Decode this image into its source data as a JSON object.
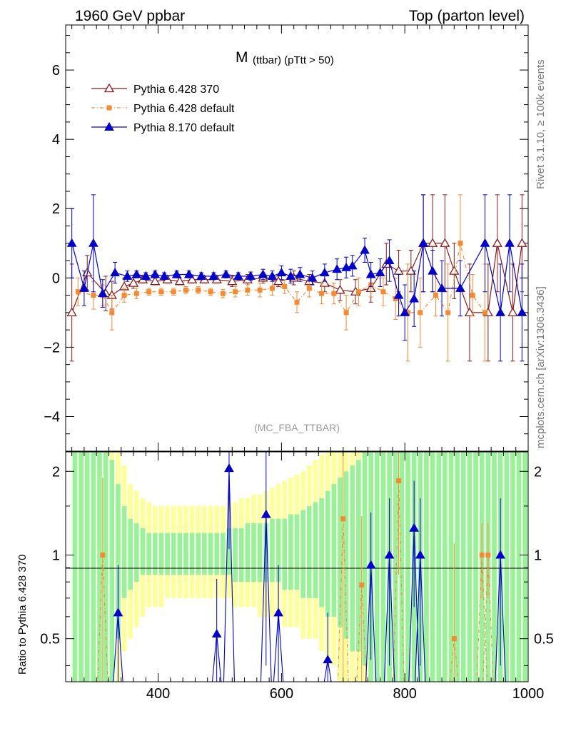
{
  "header": {
    "left": "1960 GeV ppbar",
    "right": "Top (parton level)"
  },
  "side_labels": {
    "rivet": "Rivet 3.1.10, ≥ 100k events",
    "mcplots": "mcplots.cern.ch [arXiv:1306.3436]"
  },
  "colors": {
    "pythia6_370": "#8b1a1a",
    "pythia6_default": "#f58a32",
    "pythia8_default": "#0000cc",
    "band_green": "#99f299",
    "band_yellow": "#ffff99"
  },
  "chart_data": [
    {
      "type": "line",
      "panel": "main",
      "title": "M (ttbar) (pTtt > 50)",
      "title_main": "M",
      "title_sub": "(ttbar) (pTtt > 50)",
      "analysis_tag": "(MC_FBA_TTBAR)",
      "xlim": [
        250,
        1000
      ],
      "ylim": [
        -5,
        7.3
      ],
      "yticks": [
        -4,
        -2,
        0,
        2,
        4,
        6
      ],
      "ytick_labels": [
        "−4",
        "−2",
        "0",
        "2",
        "4",
        "6"
      ],
      "legend_position": "top-left",
      "series": [
        {
          "name": "Pythia 6.428 370",
          "marker": "open-triangle",
          "x": [
            260,
            285,
            315,
            325,
            345,
            360,
            375,
            395,
            415,
            435,
            455,
            475,
            495,
            520,
            545,
            570,
            595,
            620,
            645,
            670,
            695,
            720,
            745,
            770,
            790,
            810,
            830,
            845,
            865,
            880,
            905,
            935,
            950,
            975,
            990
          ],
          "y": [
            -1.0,
            0.15,
            -0.45,
            -0.5,
            -0.25,
            -0.15,
            -0.05,
            -0.1,
            -0.05,
            -0.1,
            -0.05,
            -0.05,
            -0.05,
            -0.1,
            -0.05,
            0.0,
            -0.1,
            0.0,
            -0.1,
            -0.15,
            -0.35,
            -0.4,
            -0.3,
            0.4,
            0.2,
            0.2,
            1.0,
            1.0,
            1.0,
            0.2,
            -1.0,
            -1.0,
            1.0,
            -1.0,
            1.0
          ],
          "err": [
            1.4,
            0.5,
            0.5,
            0.4,
            0.25,
            0.15,
            0.1,
            0.1,
            0.1,
            0.1,
            0.1,
            0.1,
            0.1,
            0.15,
            0.15,
            0.15,
            0.15,
            0.2,
            0.2,
            0.25,
            0.3,
            0.35,
            0.4,
            0.6,
            0.6,
            0.6,
            1.4,
            1.4,
            1.4,
            0.8,
            1.4,
            1.4,
            1.4,
            1.4,
            1.4
          ]
        },
        {
          "name": "Pythia 6.428 default",
          "marker": "filled-square",
          "x": [
            270,
            295,
            310,
            325,
            345,
            365,
            385,
            405,
            425,
            445,
            465,
            485,
            505,
            525,
            545,
            565,
            585,
            605,
            625,
            645,
            665,
            685,
            705,
            725,
            745,
            765,
            785,
            805,
            825,
            850,
            870,
            890,
            910,
            930
          ],
          "y": [
            -0.4,
            -0.5,
            -0.5,
            -1.0,
            -0.5,
            -0.45,
            -0.4,
            -0.4,
            -0.4,
            -0.35,
            -0.35,
            -0.4,
            -0.45,
            -0.4,
            -0.35,
            -0.35,
            -0.3,
            -0.25,
            -0.7,
            -0.3,
            -0.45,
            -0.45,
            -1.0,
            -0.4,
            -0.2,
            -0.4,
            -0.6,
            -1.0,
            -1.0,
            -0.5,
            -1.0,
            1.0,
            -0.5,
            -1.0
          ],
          "err": [
            0.4,
            0.4,
            0.3,
            0.5,
            0.2,
            0.15,
            0.1,
            0.1,
            0.1,
            0.1,
            0.1,
            0.1,
            0.12,
            0.15,
            0.15,
            0.2,
            0.2,
            0.2,
            0.3,
            0.25,
            0.3,
            0.3,
            0.5,
            0.4,
            0.35,
            0.4,
            0.6,
            1.4,
            1.0,
            0.6,
            1.4,
            1.4,
            0.6,
            1.4
          ]
        },
        {
          "name": "Pythia 8.170 default",
          "marker": "filled-triangle",
          "x": [
            260,
            280,
            295,
            310,
            330,
            350,
            365,
            380,
            395,
            410,
            430,
            450,
            470,
            490,
            510,
            530,
            550,
            570,
            585,
            600,
            615,
            630,
            650,
            670,
            690,
            705,
            715,
            735,
            745,
            760,
            775,
            790,
            800,
            815,
            830,
            845,
            860,
            890,
            930,
            955,
            970,
            990
          ],
          "y": [
            1.0,
            -0.3,
            1.0,
            -0.45,
            0.15,
            0.05,
            0.1,
            0.05,
            0.1,
            0.05,
            0.1,
            0.1,
            0.05,
            0.05,
            0.1,
            0.05,
            0.05,
            0.1,
            0.05,
            0.15,
            0.05,
            0.1,
            0.0,
            0.15,
            0.25,
            0.3,
            0.35,
            0.8,
            0.1,
            0.15,
            0.5,
            -0.5,
            -1.0,
            -0.6,
            1.0,
            0.2,
            -0.3,
            -0.3,
            1.0,
            -1.0,
            1.0,
            -1.0
          ],
          "err": [
            1.0,
            0.5,
            1.4,
            0.4,
            0.3,
            0.15,
            0.1,
            0.1,
            0.1,
            0.1,
            0.1,
            0.1,
            0.1,
            0.1,
            0.1,
            0.1,
            0.12,
            0.15,
            0.15,
            0.2,
            0.2,
            0.2,
            0.2,
            0.25,
            0.3,
            0.3,
            0.3,
            0.35,
            0.35,
            0.4,
            0.6,
            0.6,
            0.8,
            0.8,
            1.4,
            0.6,
            0.8,
            0.8,
            1.4,
            1.4,
            1.4,
            1.4
          ]
        }
      ]
    },
    {
      "type": "line",
      "panel": "ratio",
      "ylabel": "Ratio to Pythia 6.428 370",
      "xlabel": "",
      "xlim": [
        250,
        1000
      ],
      "ylim": [
        0.35,
        2.35
      ],
      "xticks": [
        400,
        600,
        800,
        1000
      ],
      "xtick_labels": [
        "400",
        "600",
        "800",
        "1000"
      ],
      "yticks": [
        0.5,
        1,
        2
      ],
      "ytick_labels": [
        "0.5",
        "1",
        "2"
      ],
      "bands": {
        "x_edges": [
          260,
          270,
          280,
          290,
          300,
          310,
          320,
          330,
          340,
          350,
          360,
          370,
          380,
          390,
          400,
          410,
          420,
          430,
          440,
          450,
          460,
          470,
          480,
          490,
          500,
          510,
          520,
          530,
          540,
          550,
          560,
          570,
          580,
          590,
          600,
          610,
          620,
          630,
          640,
          650,
          660,
          670,
          680,
          690,
          700,
          710,
          720,
          730,
          740,
          750,
          760,
          770,
          780,
          790,
          800,
          810,
          820,
          830,
          840,
          850,
          860,
          870,
          880,
          890,
          900,
          910,
          920,
          930,
          940,
          950,
          960,
          970,
          980,
          990,
          1000
        ],
        "green_lo": [
          0.35,
          0.35,
          0.35,
          0.35,
          0.35,
          0.35,
          0.35,
          0.5,
          0.7,
          0.75,
          0.8,
          0.85,
          0.85,
          0.85,
          0.85,
          0.85,
          0.85,
          0.85,
          0.85,
          0.85,
          0.85,
          0.85,
          0.85,
          0.85,
          0.85,
          0.85,
          0.8,
          0.8,
          0.8,
          0.8,
          0.8,
          0.8,
          0.8,
          0.8,
          0.75,
          0.75,
          0.75,
          0.7,
          0.7,
          0.7,
          0.65,
          0.6,
          0.6,
          0.55,
          0.5,
          0.45,
          0.45,
          0.4,
          0.35,
          0.35,
          0.35,
          0.35,
          0.35,
          0.35,
          0.35,
          0.35,
          0.35,
          0.35,
          0.35,
          0.35,
          0.35,
          0.35,
          0.35,
          0.35,
          0.35,
          0.35,
          0.35,
          0.35,
          0.35,
          0.35,
          0.35,
          0.35,
          0.35,
          0.35
        ],
        "green_hi": [
          2.35,
          2.35,
          2.35,
          2.35,
          2.35,
          2.35,
          2.2,
          1.8,
          1.5,
          1.35,
          1.3,
          1.25,
          1.2,
          1.2,
          1.2,
          1.2,
          1.2,
          1.2,
          1.2,
          1.2,
          1.2,
          1.2,
          1.2,
          1.2,
          1.2,
          1.25,
          1.25,
          1.25,
          1.3,
          1.3,
          1.3,
          1.3,
          1.35,
          1.35,
          1.35,
          1.4,
          1.4,
          1.45,
          1.5,
          1.55,
          1.6,
          1.7,
          1.8,
          1.9,
          2.0,
          2.1,
          2.2,
          2.35,
          2.35,
          2.35,
          2.35,
          2.35,
          2.35,
          2.35,
          2.35,
          2.35,
          2.35,
          2.35,
          2.35,
          2.35,
          2.35,
          2.35,
          2.35,
          2.35,
          2.35,
          2.35,
          2.35,
          2.35,
          2.35,
          2.35,
          2.35,
          2.35,
          2.35,
          2.35
        ],
        "yellow_lo": [
          0.35,
          0.35,
          0.35,
          0.35,
          0.35,
          0.35,
          0.35,
          0.35,
          0.45,
          0.5,
          0.55,
          0.6,
          0.65,
          0.65,
          0.65,
          0.7,
          0.7,
          0.7,
          0.7,
          0.7,
          0.7,
          0.7,
          0.7,
          0.7,
          0.7,
          0.7,
          0.65,
          0.65,
          0.65,
          0.65,
          0.6,
          0.6,
          0.6,
          0.6,
          0.55,
          0.55,
          0.55,
          0.5,
          0.5,
          0.5,
          0.45,
          0.4,
          0.4,
          0.35,
          0.35,
          0.35,
          0.35,
          0.35,
          0.35,
          0.35,
          0.35,
          0.35,
          0.35,
          0.35,
          0.35,
          0.35,
          0.35,
          0.35,
          0.35,
          0.35,
          0.35,
          0.35,
          0.35,
          0.35,
          0.35,
          0.35,
          0.35,
          0.35,
          0.35,
          0.35,
          0.35,
          0.35,
          0.35,
          0.35
        ],
        "yellow_hi": [
          2.35,
          2.35,
          2.35,
          2.35,
          2.35,
          2.35,
          2.35,
          2.35,
          2.1,
          1.8,
          1.7,
          1.6,
          1.55,
          1.5,
          1.5,
          1.5,
          1.5,
          1.5,
          1.5,
          1.5,
          1.5,
          1.5,
          1.5,
          1.5,
          1.5,
          1.55,
          1.55,
          1.6,
          1.6,
          1.65,
          1.65,
          1.7,
          1.75,
          1.8,
          1.85,
          1.9,
          1.95,
          2.0,
          2.1,
          2.2,
          2.3,
          2.35,
          2.35,
          2.35,
          2.35,
          2.35,
          2.35,
          2.35,
          2.35,
          2.35,
          2.35,
          2.35,
          2.35,
          2.35,
          2.35,
          2.35,
          2.35,
          2.35,
          2.35,
          2.35,
          2.35,
          2.35,
          2.35,
          2.35,
          2.35,
          2.35,
          2.35,
          2.35,
          2.35,
          2.35,
          2.35,
          2.35,
          2.35,
          2.35
        ]
      },
      "series": [
        {
          "name": "Pythia 6.428 default",
          "marker": "filled-square",
          "x": [
            310,
            700,
            730,
            790,
            880,
            925,
            935
          ],
          "y": [
            1.0,
            1.35,
            0.78,
            1.85,
            0.5,
            1.0,
            1.0
          ],
          "err": [
            0.9,
            1.0,
            0.6,
            1.0,
            0.6,
            0.3,
            0.3
          ]
        },
        {
          "name": "Pythia 8.170 default",
          "marker": "filled-triangle",
          "x": [
            335,
            495,
            515,
            575,
            595,
            675,
            745,
            775,
            815,
            825,
            955
          ],
          "y": [
            0.62,
            0.52,
            2.05,
            1.4,
            0.62,
            0.42,
            0.92,
            1.0,
            1.25,
            1.0,
            1.0
          ],
          "err": [
            0.3,
            0.3,
            1.0,
            1.0,
            0.3,
            0.2,
            0.5,
            0.6,
            0.6,
            0.6,
            0.6
          ]
        }
      ]
    }
  ]
}
